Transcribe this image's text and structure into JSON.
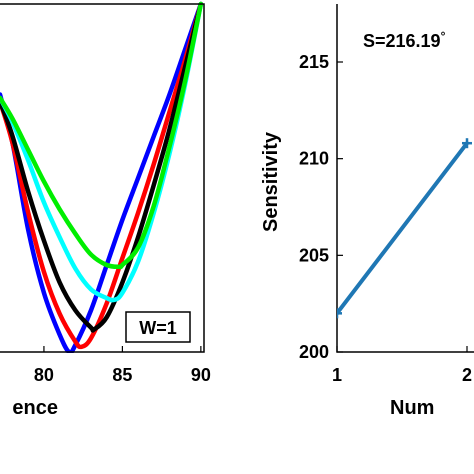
{
  "chart_data": [
    {
      "type": "line",
      "xlabel": "ence",
      "ylabel": "",
      "x_ticks": [
        "80",
        "85",
        "90"
      ],
      "xlim": [
        77.2,
        90.2
      ],
      "ylim": [
        0,
        1
      ],
      "annotation": "W=1",
      "series": [
        {
          "color": "#0000ff",
          "x": [
            77.2,
            78,
            79,
            80,
            81,
            81.6,
            82,
            83,
            84,
            85,
            86,
            87,
            88,
            89,
            90
          ],
          "y": [
            0.74,
            0.6,
            0.35,
            0.17,
            0.05,
            0.0,
            0.02,
            0.12,
            0.25,
            0.38,
            0.5,
            0.62,
            0.74,
            0.87,
            1.0
          ]
        },
        {
          "color": "#ff0000",
          "x": [
            77.2,
            78,
            79,
            80,
            81,
            82,
            82.4,
            83,
            84,
            85,
            86,
            87,
            88,
            89,
            90
          ],
          "y": [
            0.72,
            0.6,
            0.4,
            0.23,
            0.11,
            0.03,
            0.015,
            0.04,
            0.14,
            0.27,
            0.4,
            0.54,
            0.69,
            0.84,
            1.0
          ]
        },
        {
          "color": "#000000",
          "x": [
            77.2,
            78,
            79,
            80,
            81,
            82,
            83,
            83.2,
            84,
            85,
            86,
            87,
            88,
            89,
            90
          ],
          "y": [
            0.72,
            0.62,
            0.46,
            0.32,
            0.2,
            0.12,
            0.07,
            0.065,
            0.1,
            0.2,
            0.33,
            0.48,
            0.64,
            0.82,
            1.0
          ]
        },
        {
          "color": "#00ffff",
          "x": [
            77.2,
            78,
            79,
            80,
            81,
            82,
            83,
            84,
            84.5,
            85,
            86,
            87,
            88,
            89,
            90
          ],
          "y": [
            0.73,
            0.66,
            0.55,
            0.43,
            0.33,
            0.24,
            0.18,
            0.155,
            0.15,
            0.17,
            0.26,
            0.4,
            0.57,
            0.77,
            1.0
          ]
        },
        {
          "color": "#00ee00",
          "x": [
            77.2,
            78,
            79,
            80,
            81,
            82,
            83,
            84,
            84.8,
            85,
            86,
            87,
            88,
            89,
            90
          ],
          "y": [
            0.73,
            0.67,
            0.58,
            0.49,
            0.41,
            0.34,
            0.28,
            0.25,
            0.245,
            0.25,
            0.3,
            0.42,
            0.59,
            0.78,
            1.0
          ]
        }
      ]
    },
    {
      "type": "line",
      "xlabel": "Num",
      "ylabel": "Sensitivity",
      "x_ticks": [
        "1",
        "2"
      ],
      "y_ticks": [
        "200",
        "205",
        "210",
        "215"
      ],
      "xlim": [
        1,
        2
      ],
      "ylim": [
        200,
        218
      ],
      "annotation": "S=216.19",
      "annotation_suffix": "°",
      "series": [
        {
          "color": "#1f77b4",
          "x": [
            1,
            2
          ],
          "y": [
            202.0,
            210.8
          ]
        }
      ]
    }
  ]
}
